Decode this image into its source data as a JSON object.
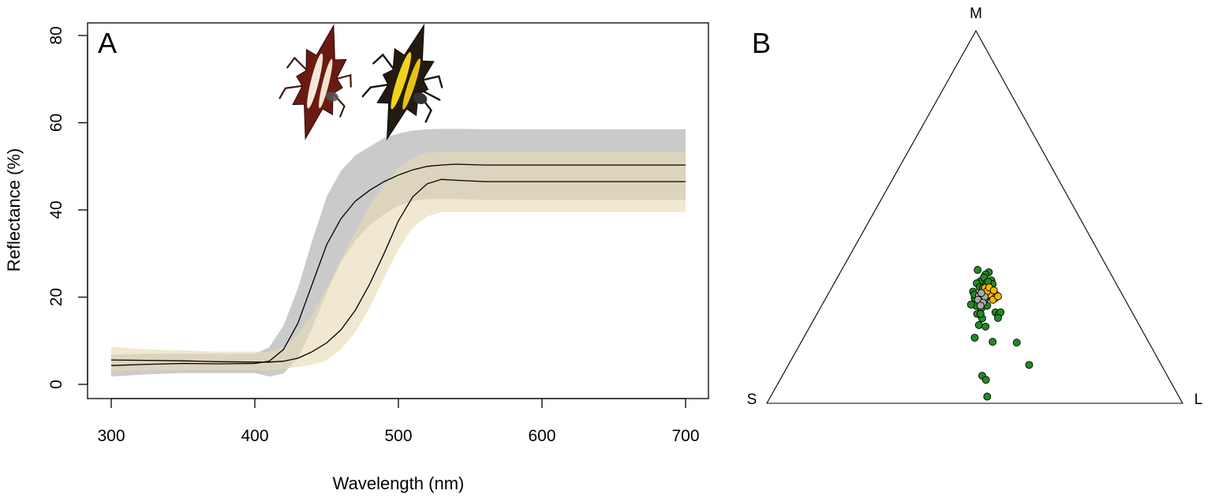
{
  "chart_data": [
    {
      "type": "area",
      "panel_label": "A",
      "xlabel": "Wavelength (nm)",
      "ylabel": "Reflectance (%)",
      "xlim": [
        300,
        700
      ],
      "ylim": [
        0,
        80
      ],
      "x_ticks": [
        300,
        400,
        500,
        600,
        700
      ],
      "y_ticks": [
        0,
        20,
        40,
        60,
        80
      ],
      "grid": false,
      "legend": "none",
      "x": [
        300,
        325,
        350,
        375,
        400,
        410,
        420,
        430,
        440,
        450,
        460,
        470,
        480,
        490,
        500,
        510,
        520,
        530,
        540,
        560,
        600,
        650,
        700
      ],
      "series": [
        {
          "color": "#b5b5b5",
          "mean": [
            4.3,
            4.6,
            4.8,
            4.7,
            4.8,
            5.3,
            8.0,
            14.0,
            23.0,
            32.0,
            38.0,
            42.0,
            44.5,
            46.5,
            48.0,
            49.2,
            50.0,
            50.3,
            50.5,
            50.3,
            50.3,
            50.3,
            50.3
          ],
          "lower": [
            1.8,
            2.3,
            2.6,
            2.6,
            2.6,
            1.8,
            2.5,
            6.0,
            13.0,
            21.0,
            28.0,
            33.0,
            36.5,
            39.0,
            41.0,
            42.0,
            42.5,
            42.5,
            42.5,
            42.3,
            42.3,
            42.3,
            42.3
          ],
          "upper": [
            6.8,
            7.0,
            7.0,
            7.0,
            7.0,
            8.5,
            13.5,
            22.0,
            33.0,
            43.0,
            49.0,
            52.5,
            54.5,
            56.5,
            57.5,
            58.2,
            58.5,
            58.6,
            58.6,
            58.5,
            58.5,
            58.5,
            58.5
          ]
        },
        {
          "color": "#e8dab5",
          "mean": [
            5.6,
            5.5,
            5.4,
            5.2,
            5.1,
            5.1,
            5.3,
            6.0,
            7.5,
            9.5,
            12.5,
            17.0,
            23.0,
            30.0,
            37.5,
            43.0,
            46.0,
            47.0,
            46.8,
            46.5,
            46.5,
            46.5,
            46.5
          ],
          "lower": [
            3.0,
            3.2,
            3.2,
            3.2,
            3.2,
            3.2,
            3.5,
            4.0,
            4.5,
            5.5,
            8.0,
            12.0,
            17.5,
            24.5,
            31.0,
            36.0,
            38.5,
            39.5,
            39.5,
            39.5,
            39.5,
            39.5,
            39.5
          ],
          "upper": [
            8.6,
            8.0,
            7.8,
            7.5,
            7.5,
            7.5,
            8.5,
            11.5,
            16.0,
            22.0,
            28.5,
            35.0,
            41.0,
            46.0,
            49.5,
            52.0,
            53.2,
            53.4,
            53.4,
            53.4,
            53.4,
            53.4,
            53.4
          ]
        }
      ]
    },
    {
      "type": "scatter",
      "panel_label": "B",
      "vertex_labels": {
        "top": "M",
        "left": "S",
        "right": "L"
      },
      "coordinate_system": "ternary chromaticity diagram; u = horizontal position from S (0) to L (1), v = height from base (0) to M apex (1)",
      "series": [
        {
          "color": "#228b22",
          "points": [
            [
              0.507,
              0.358
            ],
            [
              0.534,
              0.352
            ],
            [
              0.526,
              0.346
            ],
            [
              0.514,
              0.328
            ],
            [
              0.522,
              0.338
            ],
            [
              0.505,
              0.322
            ],
            [
              0.54,
              0.33
            ],
            [
              0.496,
              0.3
            ],
            [
              0.512,
              0.312
            ],
            [
              0.5,
              0.282
            ],
            [
              0.517,
              0.298
            ],
            [
              0.528,
              0.322
            ],
            [
              0.52,
              0.31
            ],
            [
              0.534,
              0.288
            ],
            [
              0.508,
              0.275
            ],
            [
              0.522,
              0.268
            ],
            [
              0.503,
              0.262
            ],
            [
              0.516,
              0.255
            ],
            [
              0.53,
              0.262
            ],
            [
              0.491,
              0.265
            ],
            [
              0.506,
              0.24
            ],
            [
              0.518,
              0.228
            ],
            [
              0.51,
              0.21
            ],
            [
              0.526,
              0.206
            ],
            [
              0.5,
              0.176
            ],
            [
              0.55,
              0.244
            ],
            [
              0.557,
              0.238
            ],
            [
              0.562,
              0.244
            ],
            [
              0.556,
              0.229
            ],
            [
              0.543,
              0.32
            ],
            [
              0.532,
              0.326
            ],
            [
              0.513,
              0.29
            ],
            [
              0.499,
              0.292
            ],
            [
              0.525,
              0.28
            ],
            [
              0.514,
              0.24
            ],
            [
              0.543,
              0.165
            ],
            [
              0.601,
              0.163
            ],
            [
              0.631,
              0.103
            ],
            [
              0.518,
              0.074
            ],
            [
              0.527,
              0.063
            ],
            [
              0.53,
              0.018
            ]
          ]
        },
        {
          "color": "#f5b700",
          "points": [
            [
              0.525,
              0.31
            ],
            [
              0.533,
              0.305
            ],
            [
              0.54,
              0.298
            ],
            [
              0.547,
              0.295
            ],
            [
              0.552,
              0.29
            ],
            [
              0.543,
              0.285
            ],
            [
              0.537,
              0.292
            ],
            [
              0.529,
              0.3
            ],
            [
              0.549,
              0.282
            ],
            [
              0.544,
              0.278
            ],
            [
              0.556,
              0.287
            ],
            [
              0.535,
              0.311
            ],
            [
              0.546,
              0.303
            ]
          ]
        },
        {
          "color": "#a9a9a9",
          "points": [
            [
              0.51,
              0.288
            ],
            [
              0.517,
              0.28
            ],
            [
              0.524,
              0.286
            ],
            [
              0.516,
              0.296
            ],
            [
              0.508,
              0.278
            ],
            [
              0.52,
              0.27
            ],
            [
              0.514,
              0.262
            ]
          ]
        }
      ]
    }
  ]
}
